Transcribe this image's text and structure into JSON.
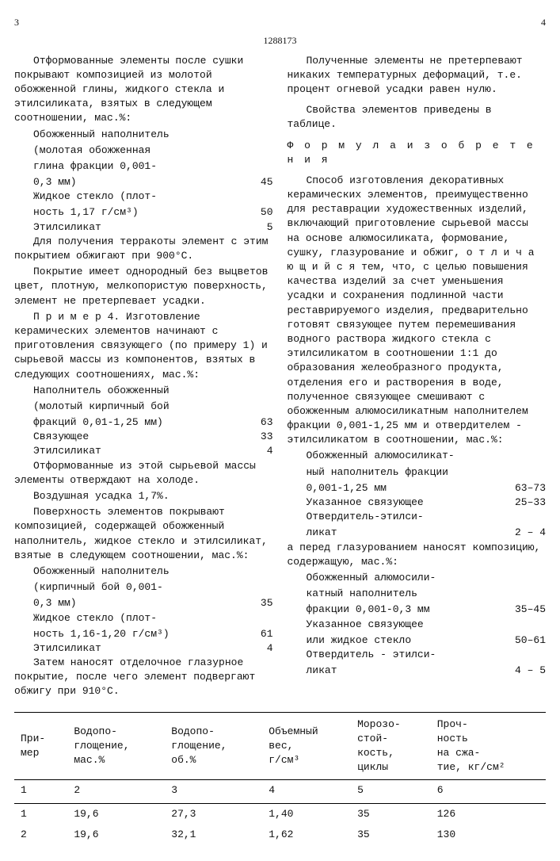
{
  "page_left": "3",
  "patent_no": "1288173",
  "page_right": "4",
  "left": {
    "p1": "Отформованные элементы после сушки покрывают композицией из молотой обожженной глины, жидкого стекла и этилсиликата, взятых в следующем соотношении, мас.%:",
    "c1r1a": "Обожженный наполнитель",
    "c1r1b": "(молотая обожженная",
    "c1r1c": "глина фракции 0,001-",
    "c1r1d": "0,3 мм)",
    "c1r1v": "45",
    "c1r2a": "Жидкое стекло (плот-",
    "c1r2b": "ность 1,17 г/см³)",
    "c1r2v": "50",
    "c1r3a": "Этилсиликат",
    "c1r3v": "5",
    "p2": "Для получения терракоты элемент с этим покрытием обжигают при 900°С.",
    "p3": "Покрытие имеет однородный без выцветов цвет, плотную, мелкопористую поверхность, элемент не претерпевает усадки.",
    "p4": "П р и м е р 4. Изготовление керамических элементов начинают с приготовления связующего (по примеру 1) и сырьевой массы из компонентов, взятых в следующих соотношениях, мас.%:",
    "c2r1a": "Наполнитель обожженный",
    "c2r1b": "(молотый кирпичный бой",
    "c2r1c": "фракций 0,01-1,25 мм)",
    "c2r1v": "63",
    "c2r2a": "Связующее",
    "c2r2v": "33",
    "c2r3a": "Этилсиликат",
    "c2r3v": "4",
    "p5": "Отформованные из этой сырьевой массы элементы отверждают на холоде.",
    "p6": "Воздушная усадка 1,7%.",
    "p7": "Поверхность элементов покрывают композицией, содержащей обожженный наполнитель, жидкое стекло и этилсиликат, взятые в следующем соотношении, мас.%:",
    "c3r1a": "Обожженный наполнитель",
    "c3r1b": "(кирпичный бой 0,001-",
    "c3r1c": "0,3 мм)",
    "c3r1v": "35",
    "c3r2a": "Жидкое стекло (плот-",
    "c3r2b": "ность 1,16-1,20 г/см³)",
    "c3r2v": "61",
    "c3r3a": "Этилсиликат",
    "c3r3v": "4",
    "p8": "Затем наносят отделочное глазурное покрытие, после чего элемент подвергают обжигу при 910°С."
  },
  "right": {
    "p1": "Полученные элементы не претерпевают никаких температурных деформаций, т.е. процент огневой усадки равен нулю.",
    "p2": "Свойства элементов приведены в таблице.",
    "formula": "Ф о р м у л а  и з о б р е т е н и я",
    "p3": "Способ изготовления декоративных керамических элементов, преимущественно для реставрации художественных изделий, включающий приготовление сырьевой массы на основе алюмосиликата, формование, сушку, глазурование и обжиг, о т л и ч а ю щ и й с я  тем, что, с целью повышения качества изделий за счет уменьшения усадки и сохранения подлинной части реставрируемого изделия, предварительно готовят связующее путем перемешивания водного раствора жидкого стекла с этилсиликатом в соотношении 1:1 до образования желеобразного продукта, отделения его и растворения в воде, полученное связующее смешивают с обожженным алюмосиликатным наполнителем фракции 0,001-1,25 мм и отвердителем - этилсиликатом в соотношении, мас.%:",
    "c4r1a": "Обожженный алюмосиликат-",
    "c4r1b": "ный наполнитель фракции",
    "c4r1c": "0,001-1,25 мм",
    "c4r1v": "63–73",
    "c4r2a": "Указанное связующее",
    "c4r2v": "25–33",
    "c4r3a": "Отвердитель-этилси-",
    "c4r3b": "ликат",
    "c4r3v": "2 – 4",
    "p4": "а перед глазурованием наносят композицию, содержащую, мас.%:",
    "c5r1a": "Обожженный алюмосили-",
    "c5r1b": "катный наполнитель",
    "c5r1c": "фракции 0,001-0,3 мм",
    "c5r1v": "35–45",
    "c5r2a": "Указанное связующее",
    "c5r2b": "или жидкое стекло",
    "c5r2v": "50–61",
    "c5r3a": "Отвердитель - этилси-",
    "c5r3b": "ликат",
    "c5r3v": "4 – 5"
  },
  "table": {
    "headers": [
      "При-\nмер",
      "Водопо-\nглощение,\nмас.%",
      "Водопо-\nглощение,\nоб.%",
      "Объемный\nвес,\nг/см³",
      "Морозо-\nстой-\nкость,\nциклы",
      "Проч-\nность\nна сжа-\nтие, кг/см²"
    ],
    "numrow": [
      "1",
      "2",
      "3",
      "4",
      "5",
      "6"
    ],
    "rows": [
      [
        "1",
        "19,6",
        "27,3",
        "1,40",
        "35",
        "126"
      ],
      [
        "2",
        "19,6",
        "32,1",
        "1,62",
        "35",
        "130"
      ]
    ]
  }
}
